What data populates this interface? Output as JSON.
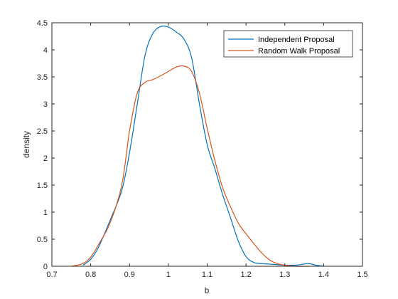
{
  "chart_data": {
    "type": "line",
    "title": "",
    "xlabel": "b",
    "ylabel": "density",
    "xlim": [
      0.7,
      1.5
    ],
    "ylim": [
      0,
      4.5
    ],
    "xticks": [
      "0.7",
      "0.8",
      "0.9",
      "1",
      "1.1",
      "1.2",
      "1.3",
      "1.4",
      "1.5"
    ],
    "yticks": [
      "0",
      "0.5",
      "1",
      "1.5",
      "2",
      "2.5",
      "3",
      "3.5",
      "4",
      "4.5"
    ],
    "grid": false,
    "legend_position": "top-right",
    "series": [
      {
        "name": "Independent Proposal",
        "color": "#0072BD",
        "x": [
          0.78,
          0.8,
          0.82,
          0.85,
          0.88,
          0.9,
          0.92,
          0.94,
          0.96,
          0.98,
          1.0,
          1.02,
          1.04,
          1.06,
          1.08,
          1.1,
          1.12,
          1.14,
          1.16,
          1.18,
          1.2,
          1.22,
          1.24,
          1.26,
          1.28,
          1.3,
          1.33,
          1.36,
          1.38,
          1.4
        ],
        "y": [
          0.02,
          0.13,
          0.35,
          0.85,
          1.4,
          2.1,
          3.0,
          3.9,
          4.3,
          4.43,
          4.42,
          4.33,
          4.2,
          3.85,
          3.0,
          2.25,
          1.8,
          1.32,
          0.9,
          0.47,
          0.18,
          0.07,
          0.05,
          0.04,
          0.03,
          0.02,
          0.02,
          0.05,
          0.02,
          0.0
        ]
      },
      {
        "name": "Random Walk Proposal",
        "color": "#D95319",
        "x": [
          0.75,
          0.78,
          0.8,
          0.82,
          0.85,
          0.88,
          0.9,
          0.92,
          0.94,
          0.96,
          0.98,
          1.0,
          1.02,
          1.04,
          1.06,
          1.08,
          1.1,
          1.12,
          1.14,
          1.16,
          1.18,
          1.2,
          1.22,
          1.24,
          1.26,
          1.28,
          1.3,
          1.33,
          1.36
        ],
        "y": [
          0.0,
          0.05,
          0.17,
          0.4,
          0.8,
          1.5,
          2.5,
          3.2,
          3.4,
          3.45,
          3.52,
          3.6,
          3.68,
          3.7,
          3.6,
          3.2,
          2.55,
          1.95,
          1.45,
          1.1,
          0.8,
          0.6,
          0.42,
          0.25,
          0.12,
          0.05,
          0.02,
          0.0,
          0.0
        ]
      }
    ]
  }
}
